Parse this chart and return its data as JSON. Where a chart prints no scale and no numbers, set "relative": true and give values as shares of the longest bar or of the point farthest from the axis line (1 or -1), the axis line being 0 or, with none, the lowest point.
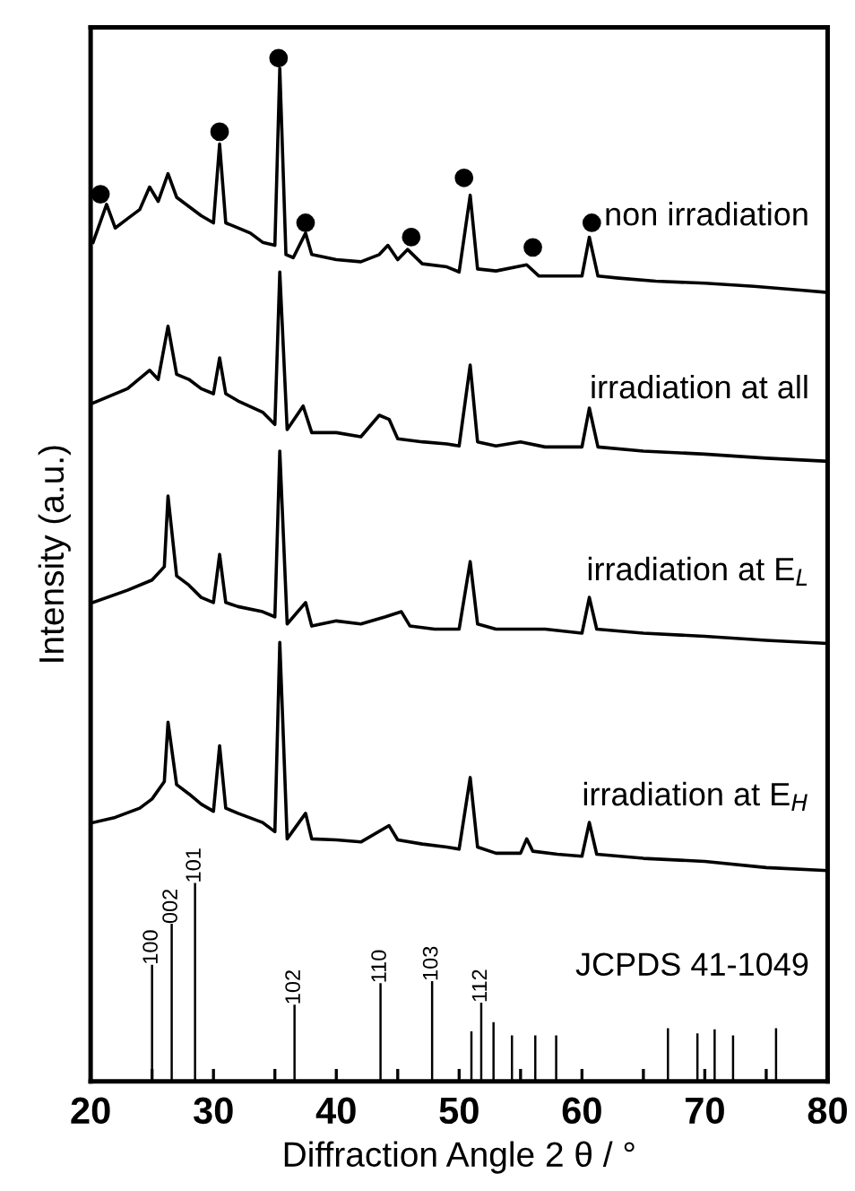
{
  "chart_data": {
    "type": "line",
    "relative": true,
    "xlabel": "Diffraction Angle 2 θ / °",
    "ylabel": "Intensity (a.u.)",
    "xlim": [
      20,
      80
    ],
    "xticks": [
      20,
      {
        "value": 25,
        "label": null
      },
      30,
      {
        "value": 35,
        "label": null
      },
      40,
      {
        "value": 45,
        "label": null
      },
      50,
      {
        "value": 55,
        "label": null
      },
      60,
      {
        "value": 65,
        "label": null
      },
      70,
      {
        "value": 75,
        "label": null
      },
      80
    ],
    "grid": false,
    "line_style": "solid",
    "annotations": [
      {
        "text": "100",
        "x": 25.0,
        "y": 0.114
      },
      {
        "text": "002",
        "x": 26.6,
        "y": 0.154
      },
      {
        "text": "101",
        "x": 28.5,
        "y": 0.194
      },
      {
        "text": "102",
        "x": 36.6,
        "y": 0.075
      },
      {
        "text": "110",
        "x": 43.6,
        "y": 0.096
      },
      {
        "text": "103",
        "x": 47.8,
        "y": 0.098
      },
      {
        "text": "112",
        "x": 51.8,
        "y": 0.077
      }
    ],
    "series": [
      {
        "name": "non irradiation",
        "color": "#000000",
        "x": [
          20.2,
          21.3,
          22,
          23,
          24,
          24.8,
          25.5,
          26.3,
          27,
          28,
          29,
          30,
          30.5,
          31,
          32,
          33,
          34,
          35,
          35.4,
          35.9,
          36.5,
          37.5,
          38,
          40,
          42,
          43.5,
          44.2,
          45,
          45.8,
          47,
          49,
          50,
          50.9,
          51.5,
          53,
          55.5,
          56.5,
          58,
          60,
          60.6,
          61.3,
          63,
          66,
          70,
          74,
          78,
          80
        ],
        "values": [
          0.82,
          0.857,
          0.834,
          0.843,
          0.852,
          0.874,
          0.86,
          0.887,
          0.864,
          0.855,
          0.846,
          0.839,
          0.916,
          0.839,
          0.834,
          0.829,
          0.82,
          0.817,
          0.99,
          0.808,
          0.805,
          0.829,
          0.808,
          0.803,
          0.801,
          0.808,
          0.817,
          0.803,
          0.813,
          0.799,
          0.796,
          0.791,
          0.866,
          0.794,
          0.792,
          0.798,
          0.787,
          0.787,
          0.787,
          0.825,
          0.787,
          0.785,
          0.782,
          0.78,
          0.777,
          0.773,
          0.771
        ]
      },
      {
        "type": "scatter",
        "marker": "circle",
        "color": "#000000",
        "x": [
          20.8,
          30.5,
          35.3,
          37.5,
          46.1,
          50.4,
          56,
          60.8
        ],
        "values": [
          0.867,
          0.928,
          1.0,
          0.839,
          0.825,
          0.883,
          0.815,
          0.839
        ]
      },
      {
        "name": "irradiation at all",
        "color": "#000000",
        "x": [
          20.2,
          23,
          24.8,
          25.5,
          26.3,
          27,
          28,
          29,
          30,
          30.5,
          31,
          32,
          34,
          35,
          35.4,
          36,
          37.3,
          38,
          40,
          42,
          43.5,
          44.3,
          45,
          47,
          49,
          50,
          50.9,
          51.5,
          53,
          55,
          57,
          60,
          60.6,
          61.3,
          65,
          70,
          75,
          80
        ],
        "values": [
          0.663,
          0.677,
          0.695,
          0.686,
          0.738,
          0.691,
          0.686,
          0.677,
          0.672,
          0.707,
          0.672,
          0.665,
          0.654,
          0.642,
          0.791,
          0.637,
          0.66,
          0.634,
          0.634,
          0.63,
          0.651,
          0.647,
          0.628,
          0.625,
          0.623,
          0.621,
          0.7,
          0.625,
          0.621,
          0.625,
          0.62,
          0.62,
          0.658,
          0.62,
          0.616,
          0.613,
          0.609,
          0.606
        ]
      },
      {
        "name": "irradiation at E$_{L}$",
        "color": "#000000",
        "x": [
          20.2,
          23,
          25,
          26,
          26.3,
          27,
          28,
          29,
          30,
          30.5,
          31,
          32,
          34,
          35,
          35.4,
          36,
          37.5,
          38,
          40,
          42,
          44,
          45.3,
          46,
          48,
          50,
          50.9,
          51.5,
          53,
          55,
          57,
          60,
          60.6,
          61.2,
          65,
          70,
          75,
          80
        ],
        "values": [
          0.468,
          0.48,
          0.49,
          0.503,
          0.572,
          0.494,
          0.485,
          0.473,
          0.468,
          0.515,
          0.468,
          0.464,
          0.459,
          0.454,
          0.616,
          0.447,
          0.468,
          0.445,
          0.45,
          0.447,
          0.454,
          0.459,
          0.445,
          0.442,
          0.442,
          0.508,
          0.447,
          0.442,
          0.442,
          0.442,
          0.438,
          0.473,
          0.442,
          0.438,
          0.435,
          0.431,
          0.428
        ]
      },
      {
        "name": "irradiation at E$_{H}$",
        "color": "#000000",
        "x": [
          20.2,
          22,
          24,
          25,
          26,
          26.3,
          27,
          28,
          29,
          30,
          30.5,
          31,
          32,
          34,
          35,
          35.4,
          36,
          37.5,
          38,
          40,
          42,
          44.3,
          45,
          47,
          49,
          50,
          50.9,
          51.5,
          53,
          55,
          55.5,
          56,
          58,
          60,
          60.6,
          61.2,
          65,
          70,
          75,
          80
        ],
        "values": [
          0.253,
          0.258,
          0.267,
          0.276,
          0.293,
          0.351,
          0.29,
          0.281,
          0.271,
          0.264,
          0.328,
          0.267,
          0.262,
          0.253,
          0.244,
          0.429,
          0.237,
          0.262,
          0.237,
          0.236,
          0.234,
          0.25,
          0.236,
          0.232,
          0.229,
          0.227,
          0.297,
          0.229,
          0.223,
          0.223,
          0.237,
          0.225,
          0.222,
          0.22,
          0.253,
          0.222,
          0.218,
          0.215,
          0.209,
          0.206
        ]
      },
      {
        "name": "JCPDS 41-1049",
        "type": "bar",
        "color": "#000000",
        "x": [
          25.0,
          26.6,
          28.5,
          36.6,
          43.6,
          47.8,
          51.0,
          51.8,
          52.8,
          54.3,
          56.2,
          57.9,
          67.0,
          69.4,
          70.8,
          72.3,
          75.8
        ],
        "values": [
          0.114,
          0.154,
          0.194,
          0.075,
          0.096,
          0.098,
          0.049,
          0.077,
          0.058,
          0.045,
          0.045,
          0.045,
          0.052,
          0.047,
          0.051,
          0.045,
          0.052
        ]
      }
    ]
  }
}
